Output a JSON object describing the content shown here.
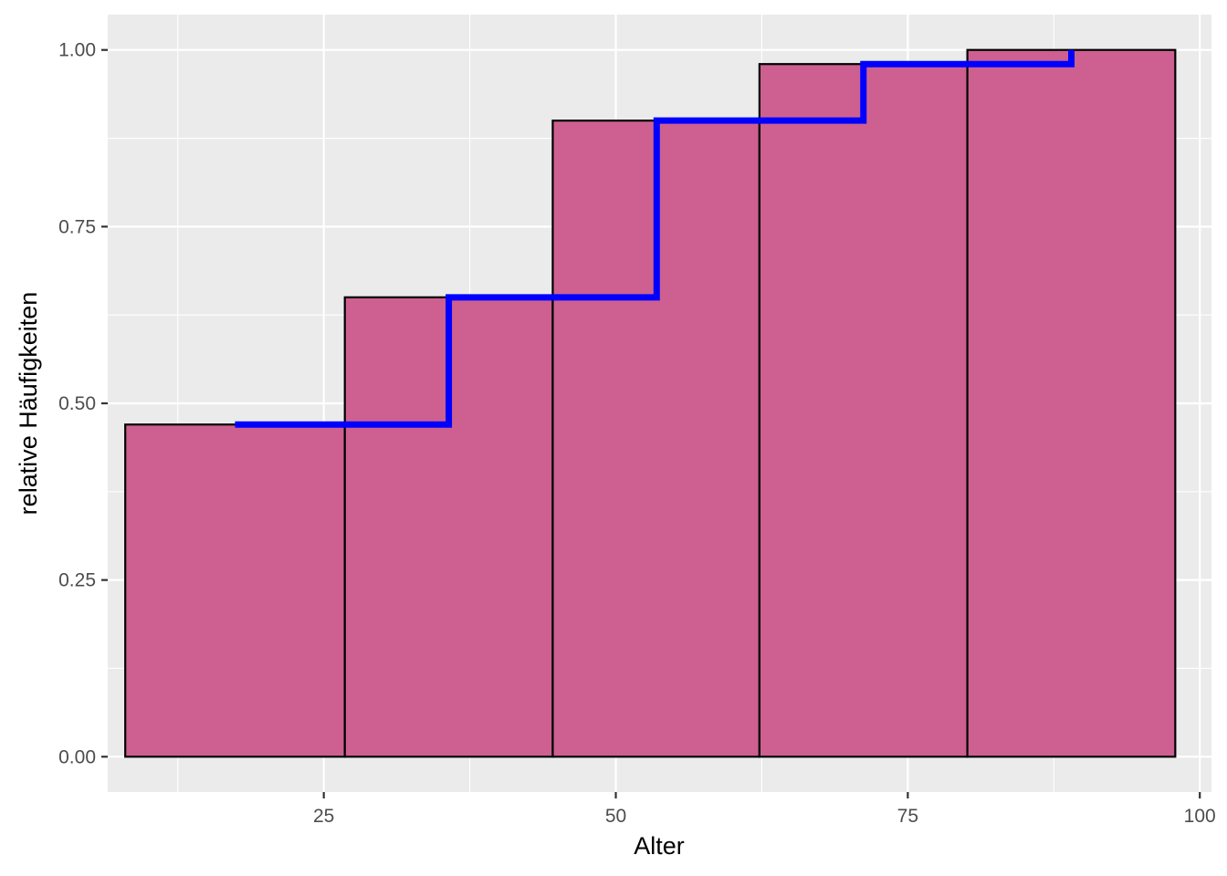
{
  "chart_data": {
    "type": "bar",
    "xlabel": "Alter",
    "ylabel": "relative Häufigkeiten",
    "xlim": [
      6.5,
      101
    ],
    "ylim": [
      -0.05,
      1.05
    ],
    "grid": true,
    "x_ticks": [
      {
        "value": 25,
        "label": "25"
      },
      {
        "value": 50,
        "label": "50"
      },
      {
        "value": 75,
        "label": "75"
      },
      {
        "value": 100,
        "label": "100"
      }
    ],
    "y_ticks": [
      {
        "value": 0.0,
        "label": "0.00"
      },
      {
        "value": 0.25,
        "label": "0.25"
      },
      {
        "value": 0.5,
        "label": "0.50"
      },
      {
        "value": 0.75,
        "label": "0.75"
      },
      {
        "value": 1.0,
        "label": "1.00"
      }
    ],
    "bars": [
      {
        "x_start": 8.0,
        "x_end": 26.8,
        "value": 0.47
      },
      {
        "x_start": 26.8,
        "x_end": 44.6,
        "value": 0.65
      },
      {
        "x_start": 44.6,
        "x_end": 62.3,
        "value": 0.9
      },
      {
        "x_start": 62.3,
        "x_end": 80.1,
        "value": 0.98
      },
      {
        "x_start": 80.1,
        "x_end": 97.9,
        "value": 1.0
      }
    ],
    "step_line": {
      "x": [
        17.4,
        35.7,
        53.5,
        71.2,
        89.0
      ],
      "y": [
        0.47,
        0.65,
        0.9,
        0.98,
        1.0
      ]
    },
    "colors": {
      "panel_background": "#EBEBEB",
      "grid_major": "#FFFFFF",
      "bar_fill": "#CD6090",
      "bar_outline": "#000000",
      "step_line": "#0000FF"
    }
  }
}
